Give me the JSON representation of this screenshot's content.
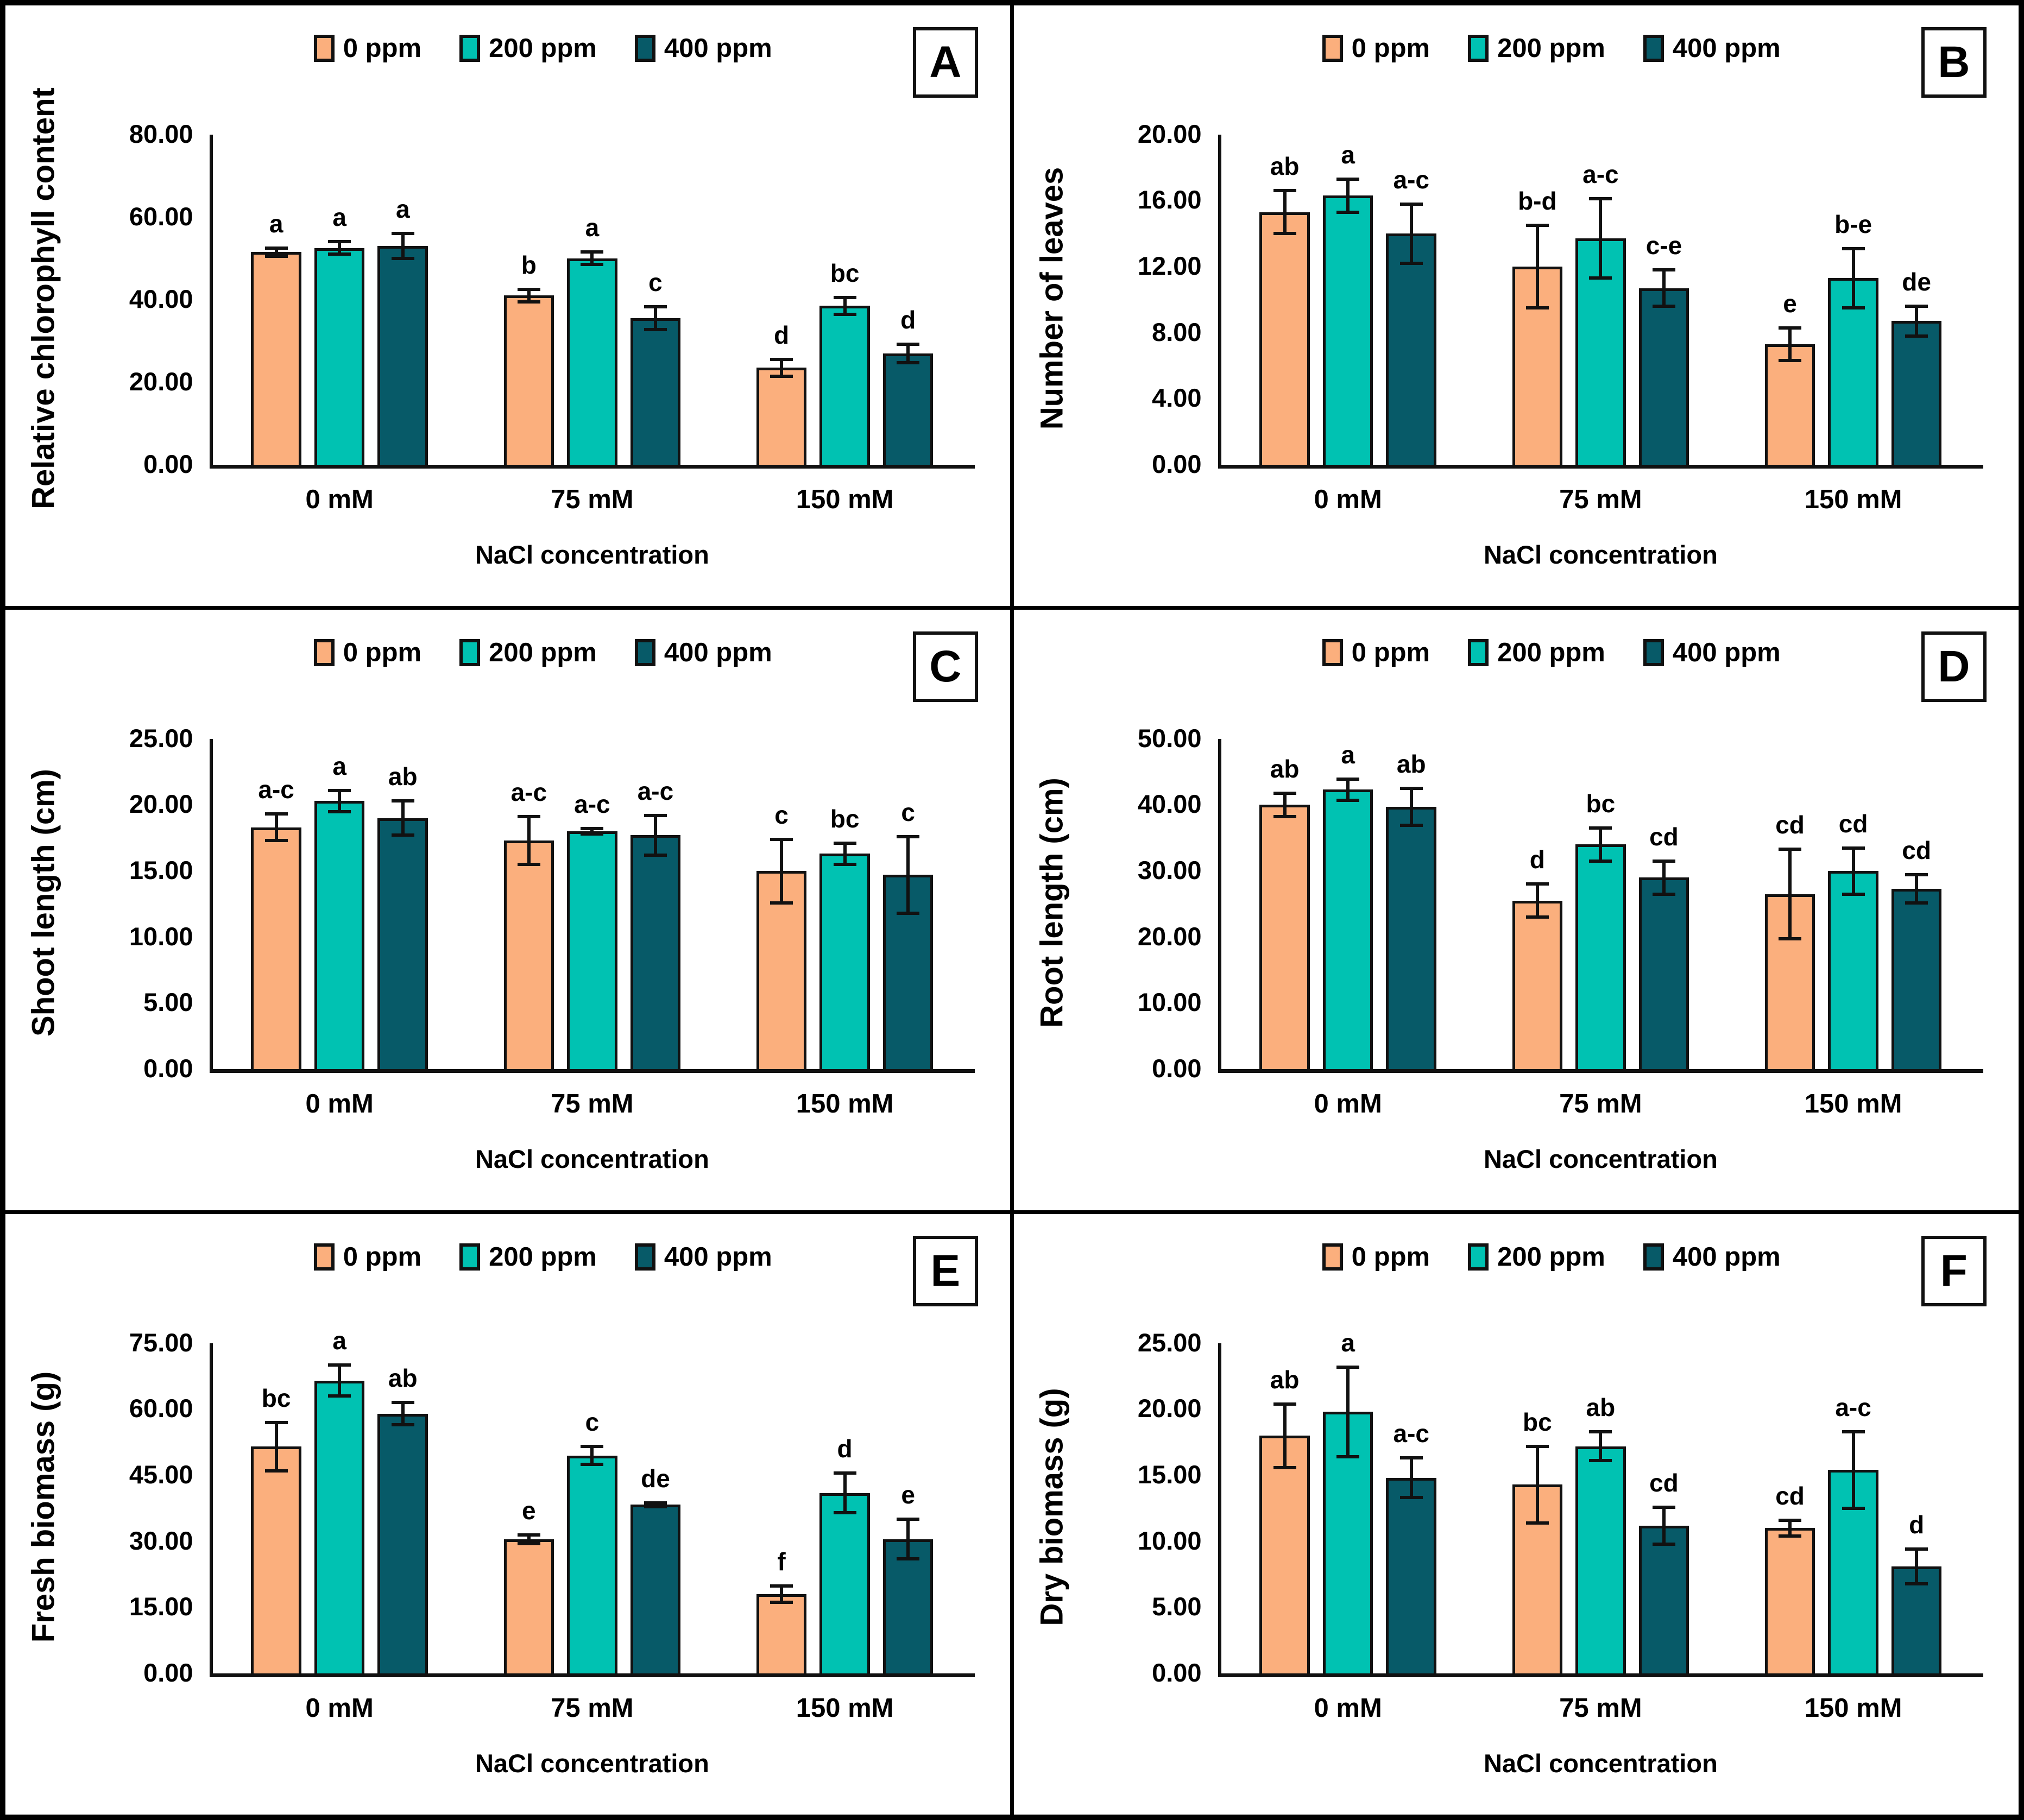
{
  "figure": {
    "x_axis_label": "NaCl concentration",
    "categories": [
      "0 mM",
      "75 mM",
      "150 mM"
    ],
    "legend": [
      {
        "label": "0 ppm",
        "color": "#FBAF7D"
      },
      {
        "label": "200 ppm",
        "color": "#00C2B2"
      },
      {
        "label": "400 ppm",
        "color": "#075A68"
      }
    ],
    "axis_color": "#111111",
    "text_color": "#000000",
    "border_color": "#000000"
  },
  "chart_data": [
    {
      "type": "bar",
      "id": "A",
      "ylabel": "Relative chlorophyll content",
      "xlabel": "NaCl concentration",
      "ylim": [
        0,
        80
      ],
      "ytick_step": 20,
      "grid": false,
      "legend_position": "top",
      "categories": [
        "0 mM",
        "75 mM",
        "150 mM"
      ],
      "series": [
        {
          "name": "0 ppm",
          "values": [
            51.5,
            41.0,
            23.5
          ],
          "errors": [
            1.0,
            1.5,
            2.0
          ],
          "letters": [
            "a",
            "b",
            "d"
          ]
        },
        {
          "name": "200 ppm",
          "values": [
            52.5,
            50.0,
            38.5
          ],
          "errors": [
            1.5,
            1.5,
            2.0
          ],
          "letters": [
            "a",
            "a",
            "bc"
          ]
        },
        {
          "name": "400 ppm",
          "values": [
            53.0,
            35.5,
            27.0
          ],
          "errors": [
            3.0,
            2.8,
            2.2
          ],
          "letters": [
            "a",
            "c",
            "d"
          ]
        }
      ]
    },
    {
      "type": "bar",
      "id": "B",
      "ylabel": "Number of leaves",
      "xlabel": "NaCl concentration",
      "ylim": [
        0,
        20
      ],
      "ytick_step": 4,
      "grid": false,
      "legend_position": "top",
      "categories": [
        "0 mM",
        "75 mM",
        "150 mM"
      ],
      "series": [
        {
          "name": "0 ppm",
          "values": [
            15.3,
            12.0,
            7.3
          ],
          "errors": [
            1.3,
            2.5,
            1.0
          ],
          "letters": [
            "ab",
            "b-d",
            "e"
          ]
        },
        {
          "name": "200 ppm",
          "values": [
            16.3,
            13.7,
            11.3
          ],
          "errors": [
            1.0,
            2.4,
            1.8
          ],
          "letters": [
            "a",
            "a-c",
            "b-e"
          ]
        },
        {
          "name": "400 ppm",
          "values": [
            14.0,
            10.7,
            8.7
          ],
          "errors": [
            1.8,
            1.1,
            0.9
          ],
          "letters": [
            "a-c",
            "c-e",
            "de"
          ]
        }
      ]
    },
    {
      "type": "bar",
      "id": "C",
      "ylabel": "Shoot length (cm)",
      "xlabel": "NaCl concentration",
      "ylim": [
        0,
        25
      ],
      "ytick_step": 5,
      "grid": false,
      "legend_position": "top",
      "categories": [
        "0 mM",
        "75 mM",
        "150 mM"
      ],
      "series": [
        {
          "name": "0 ppm",
          "values": [
            18.3,
            17.3,
            15.0
          ],
          "errors": [
            1.0,
            1.8,
            2.4
          ],
          "letters": [
            "a-c",
            "a-c",
            "c"
          ]
        },
        {
          "name": "200 ppm",
          "values": [
            20.3,
            18.0,
            16.3
          ],
          "errors": [
            0.8,
            0.2,
            0.8
          ],
          "letters": [
            "a",
            "a-c",
            "bc"
          ]
        },
        {
          "name": "400 ppm",
          "values": [
            19.0,
            17.7,
            14.7
          ],
          "errors": [
            1.3,
            1.5,
            2.9
          ],
          "letters": [
            "ab",
            "a-c",
            "c"
          ]
        }
      ]
    },
    {
      "type": "bar",
      "id": "D",
      "ylabel": "Root length (cm)",
      "xlabel": "NaCl concentration",
      "ylim": [
        0,
        50
      ],
      "ytick_step": 10,
      "grid": false,
      "legend_position": "top",
      "categories": [
        "0 mM",
        "75 mM",
        "150 mM"
      ],
      "series": [
        {
          "name": "0 ppm",
          "values": [
            40.0,
            25.5,
            26.5
          ],
          "errors": [
            1.8,
            2.5,
            6.8
          ],
          "letters": [
            "ab",
            "d",
            "cd"
          ]
        },
        {
          "name": "200 ppm",
          "values": [
            42.3,
            34.0,
            30.0
          ],
          "errors": [
            1.6,
            2.5,
            3.5
          ],
          "letters": [
            "a",
            "bc",
            "cd"
          ]
        },
        {
          "name": "400 ppm",
          "values": [
            39.7,
            29.0,
            27.3
          ],
          "errors": [
            2.8,
            2.5,
            2.1
          ],
          "letters": [
            "ab",
            "cd",
            "cd"
          ]
        }
      ]
    },
    {
      "type": "bar",
      "id": "E",
      "ylabel": "Fresh biomass (g)",
      "xlabel": "NaCl concentration",
      "ylim": [
        0,
        75
      ],
      "ytick_step": 15,
      "grid": false,
      "legend_position": "top",
      "categories": [
        "0 mM",
        "75 mM",
        "150 mM"
      ],
      "series": [
        {
          "name": "0 ppm",
          "values": [
            51.5,
            30.5,
            18.0
          ],
          "errors": [
            5.5,
            1.0,
            1.8
          ],
          "letters": [
            "bc",
            "e",
            "f"
          ]
        },
        {
          "name": "200 ppm",
          "values": [
            66.5,
            49.5,
            41.0
          ],
          "errors": [
            3.5,
            2.0,
            4.5
          ],
          "letters": [
            "a",
            "c",
            "d"
          ]
        },
        {
          "name": "400 ppm",
          "values": [
            59.0,
            38.3,
            30.5
          ],
          "errors": [
            2.5,
            0.4,
            4.5
          ],
          "letters": [
            "ab",
            "de",
            "e"
          ]
        }
      ]
    },
    {
      "type": "bar",
      "id": "F",
      "ylabel": "Dry biomass (g)",
      "xlabel": "NaCl concentration",
      "ylim": [
        0,
        25
      ],
      "ytick_step": 5,
      "grid": false,
      "legend_position": "top",
      "categories": [
        "0 mM",
        "75 mM",
        "150 mM"
      ],
      "series": [
        {
          "name": "0 ppm",
          "values": [
            18.0,
            14.3,
            11.0
          ],
          "errors": [
            2.4,
            2.9,
            0.6
          ],
          "letters": [
            "ab",
            "bc",
            "cd"
          ]
        },
        {
          "name": "200 ppm",
          "values": [
            19.8,
            17.2,
            15.4
          ],
          "errors": [
            3.4,
            1.1,
            2.9
          ],
          "letters": [
            "a",
            "ab",
            "a-c"
          ]
        },
        {
          "name": "400 ppm",
          "values": [
            14.8,
            11.2,
            8.1
          ],
          "errors": [
            1.5,
            1.4,
            1.3
          ],
          "letters": [
            "a-c",
            "cd",
            "d"
          ]
        }
      ]
    }
  ]
}
